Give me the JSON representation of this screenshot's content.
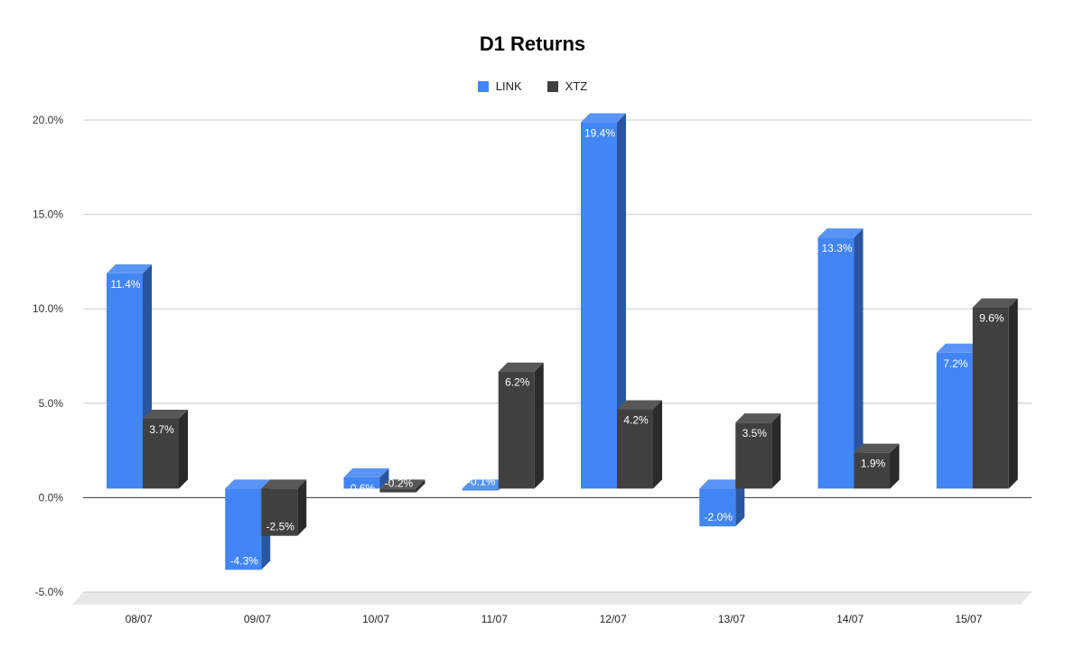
{
  "chart_data": {
    "type": "bar",
    "title": "D1 Returns",
    "xlabel": "",
    "ylabel": "",
    "categories": [
      "08/07",
      "09/07",
      "10/07",
      "11/07",
      "12/07",
      "13/07",
      "14/07",
      "15/07"
    ],
    "series": [
      {
        "name": "LINK",
        "color": "#4285f4",
        "values": [
          11.4,
          -4.3,
          0.6,
          -0.1,
          19.4,
          -2.0,
          13.3,
          7.2
        ],
        "labels": [
          "11.4%",
          "-4.3%",
          "0.6%",
          "-0.1%",
          "19.4%",
          "-2.0%",
          "13.3%",
          "7.2%"
        ]
      },
      {
        "name": "XTZ",
        "color": "#404040",
        "values": [
          3.7,
          -2.5,
          -0.2,
          6.2,
          4.2,
          3.5,
          1.9,
          9.6
        ],
        "labels": [
          "3.7%",
          "-2.5%",
          "-0.2%",
          "6.2%",
          "4.2%",
          "3.5%",
          "1.9%",
          "9.6%"
        ]
      }
    ],
    "ylim": [
      -5,
      20
    ],
    "yticks": [
      20,
      15,
      10,
      5,
      0,
      -5
    ],
    "ytick_labels": [
      "20.0%",
      "15.0%",
      "10.0%",
      "5.0%",
      "0.0%",
      "-5.0%"
    ],
    "grid": true,
    "legend_position": "top-center",
    "style": "3d"
  }
}
